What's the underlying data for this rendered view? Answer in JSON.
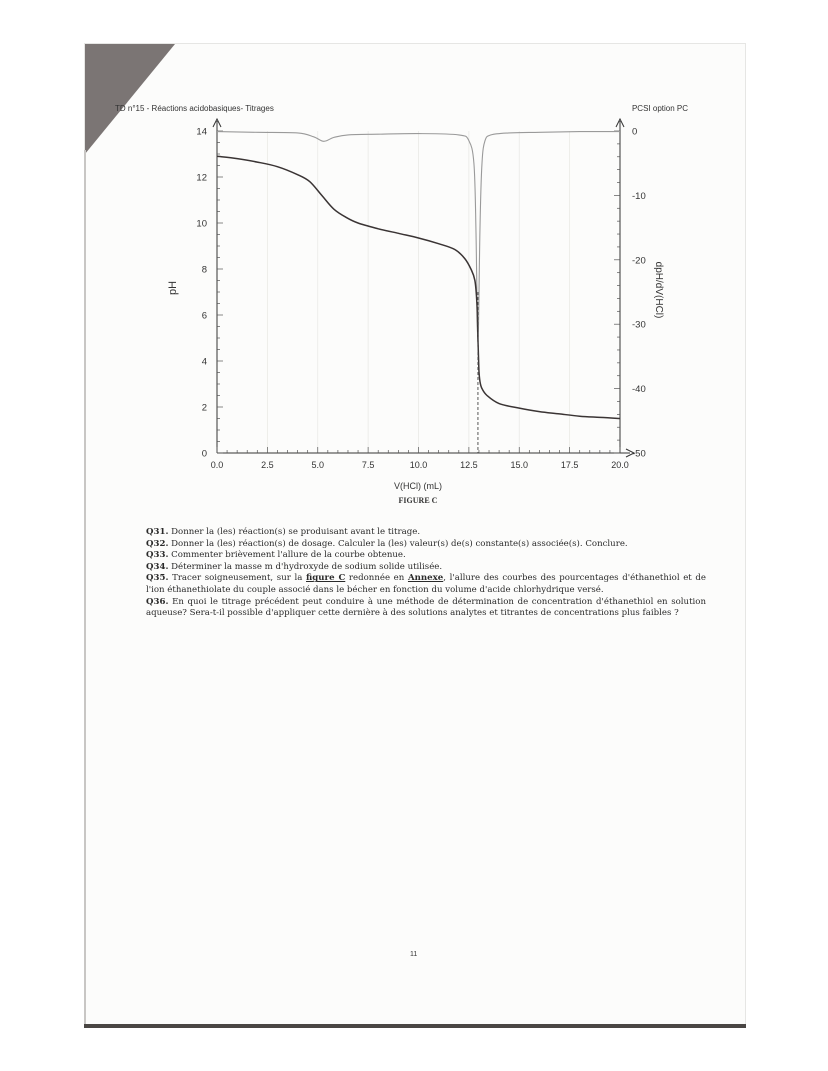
{
  "header": {
    "left": "TD n°15 - Réactions acidobasiques- Titrages",
    "right": "PCSI option PC"
  },
  "chart_data": {
    "type": "line",
    "xlabel": "V(HCl) (mL)",
    "ylabel": "pH",
    "y2label": "dpH/dV(HCl)",
    "caption": "FIGURE C",
    "xlim": [
      0,
      20
    ],
    "ylim": [
      0,
      14
    ],
    "y2lim": [
      -50,
      0
    ],
    "x_ticks": [
      "0.0",
      "2.5",
      "5.0",
      "7.5",
      "10.0",
      "12.5",
      "15.0",
      "17.5",
      "20.0"
    ],
    "y_ticks": [
      "0",
      "2",
      "4",
      "6",
      "8",
      "10",
      "12",
      "14"
    ],
    "y2_ticks": [
      "0",
      "-10",
      "-20",
      "-30",
      "-40",
      "-50"
    ],
    "series": [
      {
        "role": "pH",
        "x": [
          0,
          1,
          2,
          3,
          4,
          4.6,
          5.2,
          5.8,
          6.4,
          7,
          8,
          9,
          10,
          11,
          11.8,
          12.3,
          12.6,
          12.8,
          12.9,
          12.95,
          13.0,
          13.05,
          13.15,
          13.4,
          14,
          15,
          16,
          17,
          18,
          19,
          20
        ],
        "y": [
          12.9,
          12.8,
          12.65,
          12.45,
          12.1,
          11.8,
          11.2,
          10.6,
          10.25,
          10.0,
          9.75,
          9.55,
          9.35,
          9.1,
          8.85,
          8.45,
          8.0,
          7.5,
          6.5,
          5.0,
          3.6,
          3.1,
          2.8,
          2.5,
          2.15,
          1.95,
          1.8,
          1.7,
          1.6,
          1.55,
          1.5
        ]
      },
      {
        "role": "dpH/dV(HCl)",
        "x": [
          0,
          2,
          4,
          4.8,
          5.3,
          5.8,
          6.5,
          8,
          10,
          12,
          12.5,
          12.75,
          12.85,
          12.95,
          13.05,
          13.15,
          13.3,
          13.6,
          14.5,
          16,
          18,
          20
        ],
        "y": [
          -0.1,
          -0.2,
          -0.3,
          -0.9,
          -1.6,
          -1.0,
          -0.6,
          -0.5,
          -0.4,
          -0.6,
          -1.5,
          -5,
          -15,
          -33,
          -15,
          -5,
          -1.5,
          -0.6,
          -0.3,
          -0.2,
          -0.1,
          -0.1
        ]
      }
    ]
  },
  "questions": [
    {
      "num": "Q31.",
      "text": "Donner la (les) réaction(s) se produisant avant le titrage."
    },
    {
      "num": "Q32.",
      "text": "Donner la (les) réaction(s) de dosage. Calculer la (les) valeur(s) de(s) constante(s) associée(s). Conclure."
    },
    {
      "num": "Q33.",
      "text": "Commenter brièvement l'allure de la courbe obtenue."
    },
    {
      "num": "Q34.",
      "text": "Déterminer la masse m d'hydroxyde de sodium solide utilisée."
    },
    {
      "num": "Q35.",
      "text_a": "Tracer soigneusement, sur la ",
      "link1": "figure C",
      "text_b": " redonnée en ",
      "link2": "Annexe",
      "text_c": ", l'allure des courbes des pourcentages d'éthanethiol et de l'ion éthanethiolate du couple associé dans le bécher en fonction du volume d'acide chlorhydrique versé."
    },
    {
      "num": "Q36.",
      "text": "En quoi le titrage précédent peut conduire à une méthode de détermination de concentration d'éthanethiol en solution aqueuse? Sera-t-il possible d'appliquer cette dernière à des solutions analytes et titrantes de concentrations plus faibles ?"
    }
  ],
  "page_number": "11"
}
